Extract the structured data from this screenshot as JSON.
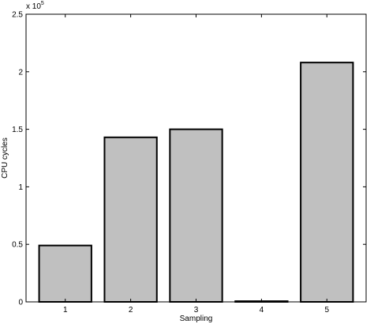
{
  "chart_data": {
    "type": "bar",
    "categories": [
      "1",
      "2",
      "3",
      "4",
      "5"
    ],
    "values": [
      49000,
      143000,
      150000,
      600,
      208000
    ],
    "xlabel": "Sampling",
    "ylabel": "CPU cycles",
    "ylim": [
      0,
      250000
    ],
    "yticks": [
      0,
      50000,
      100000,
      150000,
      200000,
      250000
    ],
    "ytick_labels": [
      "0",
      "0.5",
      "1",
      "1.5",
      "2",
      "2.5"
    ],
    "y_multiplier_base": "x 10",
    "y_multiplier_exp": "5",
    "grid": false,
    "bar_color": "#c0c0c0",
    "edge_color": "#000000"
  }
}
